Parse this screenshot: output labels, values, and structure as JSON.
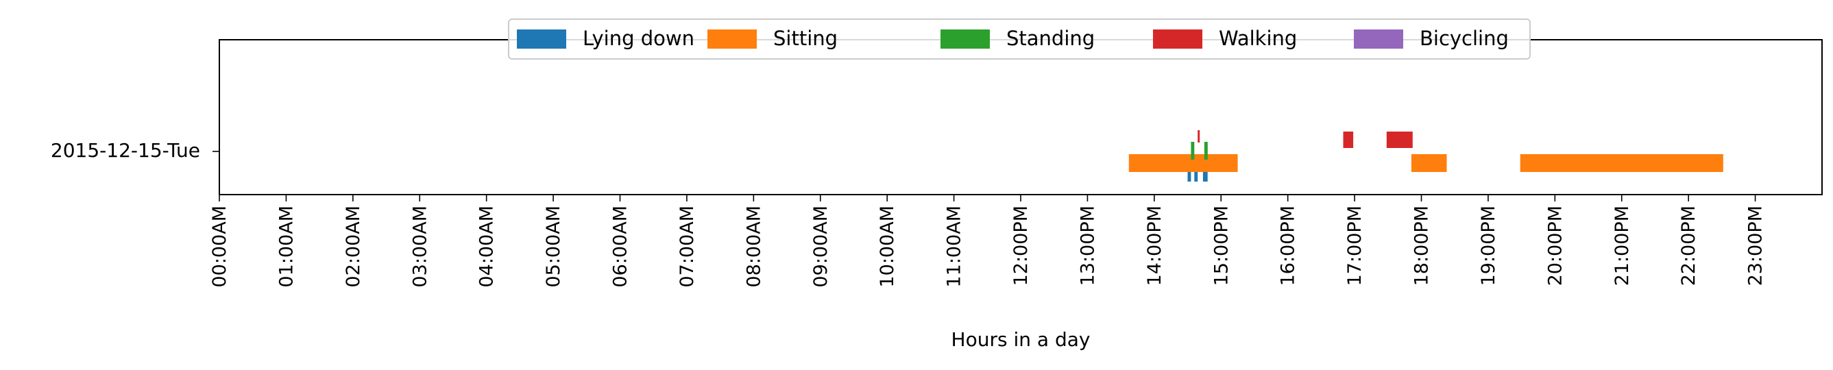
{
  "chart_data": {
    "type": "timeline",
    "ylabel_category": "2015-12-15-Tue",
    "xlabel": "Hours in a day",
    "xlim": [
      0,
      24
    ],
    "x_ticks": [
      {
        "hour": 0,
        "label": "00:00AM"
      },
      {
        "hour": 1,
        "label": "01:00AM"
      },
      {
        "hour": 2,
        "label": "02:00AM"
      },
      {
        "hour": 3,
        "label": "03:00AM"
      },
      {
        "hour": 4,
        "label": "04:00AM"
      },
      {
        "hour": 5,
        "label": "05:00AM"
      },
      {
        "hour": 6,
        "label": "06:00AM"
      },
      {
        "hour": 7,
        "label": "07:00AM"
      },
      {
        "hour": 8,
        "label": "08:00AM"
      },
      {
        "hour": 9,
        "label": "09:00AM"
      },
      {
        "hour": 10,
        "label": "10:00AM"
      },
      {
        "hour": 11,
        "label": "11:00AM"
      },
      {
        "hour": 12,
        "label": "12:00PM"
      },
      {
        "hour": 13,
        "label": "13:00PM"
      },
      {
        "hour": 14,
        "label": "14:00PM"
      },
      {
        "hour": 15,
        "label": "15:00PM"
      },
      {
        "hour": 16,
        "label": "16:00PM"
      },
      {
        "hour": 17,
        "label": "17:00PM"
      },
      {
        "hour": 18,
        "label": "18:00PM"
      },
      {
        "hour": 19,
        "label": "19:00PM"
      },
      {
        "hour": 20,
        "label": "20:00PM"
      },
      {
        "hour": 21,
        "label": "21:00PM"
      },
      {
        "hour": 22,
        "label": "22:00PM"
      },
      {
        "hour": 23,
        "label": "23:00PM"
      }
    ],
    "legend_position": "top-center",
    "grid": false,
    "series": [
      {
        "name": "Lying down",
        "color": "#1f77b4",
        "intervals": [
          [
            14.5,
            14.55
          ],
          [
            14.6,
            14.65
          ],
          [
            14.73,
            14.8
          ]
        ]
      },
      {
        "name": "Sitting",
        "color": "#ff7f0e",
        "intervals": [
          [
            13.62,
            15.25
          ],
          [
            17.85,
            18.38
          ],
          [
            19.48,
            22.52
          ]
        ]
      },
      {
        "name": "Standing",
        "color": "#2ca02c",
        "intervals": [
          [
            14.55,
            14.6
          ],
          [
            14.75,
            14.8
          ]
        ]
      },
      {
        "name": "Walking",
        "color": "#d62728",
        "intervals": [
          [
            14.65,
            14.68
          ],
          [
            16.83,
            16.98
          ],
          [
            17.48,
            17.87
          ]
        ]
      },
      {
        "name": "Bicycling",
        "color": "#9467bd",
        "intervals": []
      }
    ]
  }
}
